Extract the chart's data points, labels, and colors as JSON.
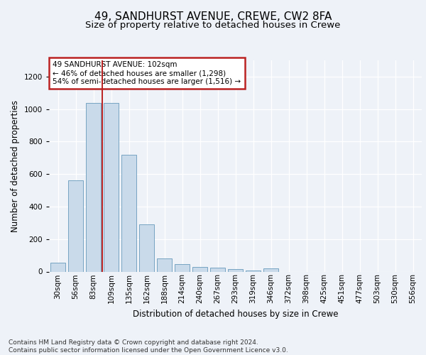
{
  "title_line1": "49, SANDHURST AVENUE, CREWE, CW2 8FA",
  "title_line2": "Size of property relative to detached houses in Crewe",
  "xlabel": "Distribution of detached houses by size in Crewe",
  "ylabel": "Number of detached properties",
  "categories": [
    "30sqm",
    "56sqm",
    "83sqm",
    "109sqm",
    "135sqm",
    "162sqm",
    "188sqm",
    "214sqm",
    "240sqm",
    "267sqm",
    "293sqm",
    "319sqm",
    "346sqm",
    "372sqm",
    "398sqm",
    "425sqm",
    "451sqm",
    "477sqm",
    "503sqm",
    "530sqm",
    "556sqm"
  ],
  "values": [
    55,
    560,
    1040,
    1040,
    720,
    290,
    82,
    48,
    28,
    22,
    16,
    8,
    18,
    0,
    0,
    0,
    0,
    0,
    0,
    0,
    0
  ],
  "bar_color": "#c9daea",
  "bar_edge_color": "#6699bb",
  "vline_x": 2.5,
  "vline_color": "#bb2222",
  "annotation_text": "49 SANDHURST AVENUE: 102sqm\n← 46% of detached houses are smaller (1,298)\n54% of semi-detached houses are larger (1,516) →",
  "annotation_box_facecolor": "#ffffff",
  "annotation_box_edgecolor": "#bb2222",
  "ylim": [
    0,
    1300
  ],
  "yticks": [
    0,
    200,
    400,
    600,
    800,
    1000,
    1200
  ],
  "background_color": "#eef2f8",
  "plot_bg_color": "#eef2f8",
  "footer": "Contains HM Land Registry data © Crown copyright and database right 2024.\nContains public sector information licensed under the Open Government Licence v3.0.",
  "title_fontsize": 11,
  "subtitle_fontsize": 9.5,
  "axis_label_fontsize": 8.5,
  "tick_fontsize": 7.5,
  "annotation_fontsize": 7.5,
  "footer_fontsize": 6.5
}
